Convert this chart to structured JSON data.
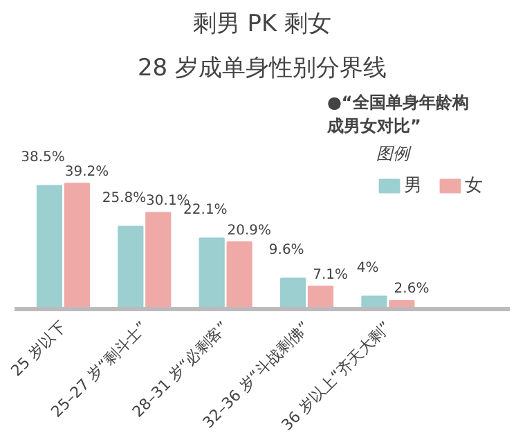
{
  "chart_data": {
    "type": "bar",
    "title": "剩男 PK 剩女",
    "subtitle": "28 岁成单身性别分界线",
    "categories": [
      "25 岁以下",
      "25–27 岁“剩斗士”",
      "28–31 岁“必剩客”",
      "32–36 岁“斗战剩佛”",
      "36 岁以上“齐天大剩”"
    ],
    "series": [
      {
        "name": "男",
        "color": "#9ccfcf",
        "values": [
          38.5,
          25.8,
          22.1,
          9.6,
          4
        ],
        "value_labels": [
          "38.5%",
          "25.8%",
          "22.1%",
          "9.6%",
          "4%"
        ]
      },
      {
        "name": "女",
        "color": "#efaaa8",
        "values": [
          39.2,
          30.1,
          20.9,
          7.1,
          2.6
        ],
        "value_labels": [
          "39.2%",
          "30.1%",
          "20.9%",
          "7.1%",
          "2.6%"
        ]
      }
    ],
    "annotations": [
      "●“全国单身年龄构成男女对比”"
    ],
    "legend_title": "图例",
    "legend": "right",
    "grid": false
  }
}
